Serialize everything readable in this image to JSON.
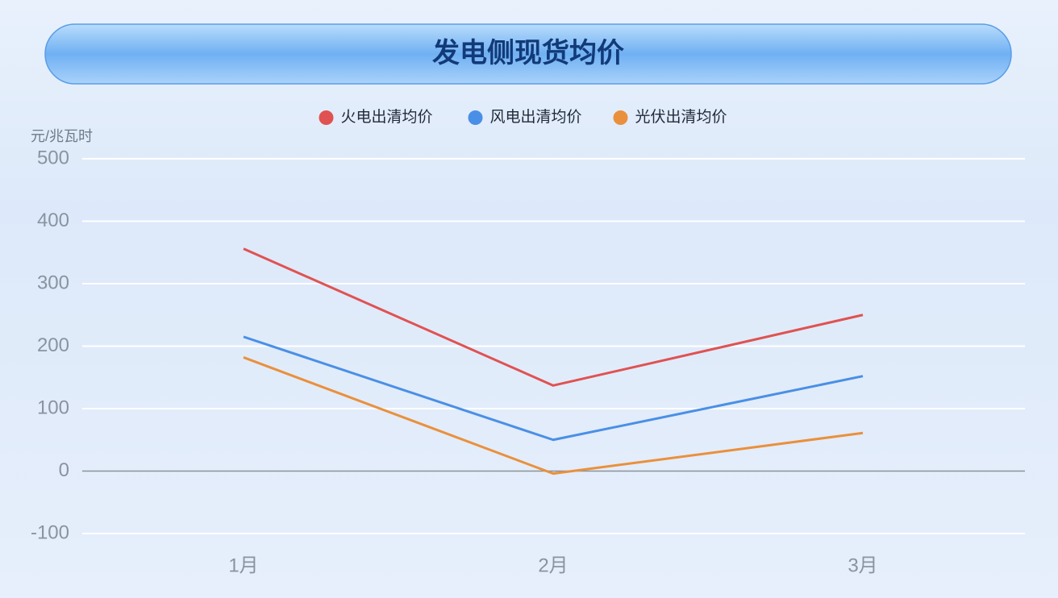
{
  "chart_data": {
    "type": "line",
    "title": "发电侧现货均价",
    "y_label": "元/兆瓦时",
    "categories": [
      "1月",
      "2月",
      "3月"
    ],
    "series": [
      {
        "name": "火电出清均价",
        "color": "#e05252",
        "values": [
          356,
          137,
          250
        ]
      },
      {
        "name": "风电出清均价",
        "color": "#4a8fe6",
        "values": [
          215,
          50,
          152
        ]
      },
      {
        "name": "光伏出清均价",
        "color": "#ea903c",
        "values": [
          182,
          -4,
          61
        ]
      }
    ],
    "ylim": [
      -100,
      500
    ],
    "yticks": [
      -100,
      0,
      100,
      200,
      300,
      400,
      500
    ],
    "grid": true,
    "legend": "top"
  }
}
